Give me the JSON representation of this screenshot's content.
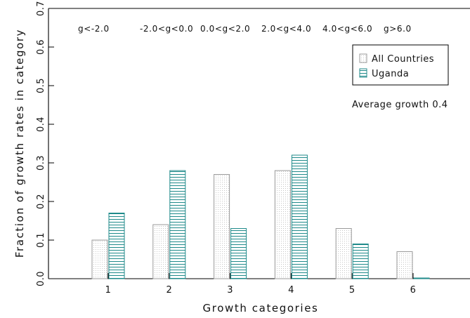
{
  "chart_data": {
    "type": "bar",
    "categories": [
      "1",
      "2",
      "3",
      "4",
      "5",
      "6"
    ],
    "category_ranges": [
      "g<-2.0",
      "-2.0<g<0.0",
      "0.0<g<2.0",
      "2.0<g<4.0",
      "4.0<g<6.0",
      "g>6.0"
    ],
    "series": [
      {
        "name": "All Countries",
        "values": [
          0.1,
          0.14,
          0.27,
          0.28,
          0.13,
          0.07
        ],
        "color": "#999999",
        "pattern": "dots"
      },
      {
        "name": "Uganda",
        "values": [
          0.17,
          0.28,
          0.13,
          0.32,
          0.09,
          0.0
        ],
        "color": "#1f8a8a",
        "pattern": "horizontal-lines"
      }
    ],
    "xlabel": "Growth categories",
    "ylabel": "Fraction of growth rates in category",
    "ylim": [
      0,
      0.7
    ],
    "yticks": [
      "0.0",
      "0.1",
      "0.2",
      "0.3",
      "0.4",
      "0.5",
      "0.6",
      "0.7"
    ],
    "annotation": "Average growth 0.4",
    "legend_position": "top-right",
    "grid": false
  }
}
